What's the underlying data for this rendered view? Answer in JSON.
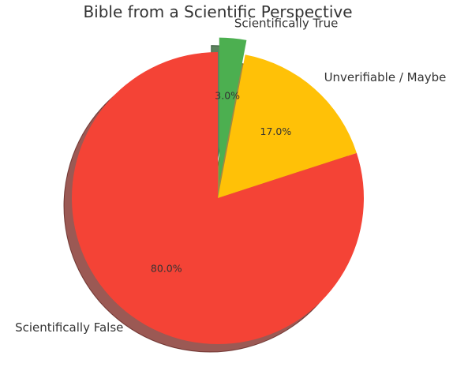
{
  "chart_data": {
    "type": "pie",
    "title": "Bible from a Scientific Perspective",
    "start_angle_deg": 90,
    "direction": "clockwise",
    "shadow": true,
    "slices": [
      {
        "label": "Scientifically True",
        "value": 3.0,
        "pct_label": "3.0%",
        "color": "#4caf50",
        "explode": 0.1
      },
      {
        "label": "Unverifiable / Maybe",
        "value": 17.0,
        "pct_label": "17.0%",
        "color": "#ffc107",
        "explode": 0
      },
      {
        "label": "Scientifically False",
        "value": 80.0,
        "pct_label": "80.0%",
        "color": "#f44336",
        "explode": 0
      }
    ]
  }
}
